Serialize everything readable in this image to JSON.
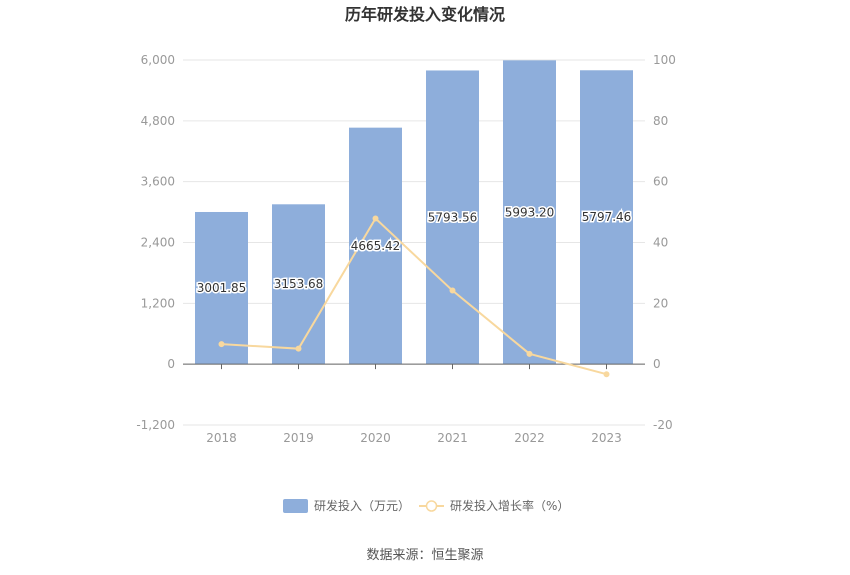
{
  "chart_data": {
    "type": "bar",
    "title": "历年研发投入变化情况",
    "categories": [
      "2018",
      "2019",
      "2020",
      "2021",
      "2022",
      "2023"
    ],
    "series": [
      {
        "name": "研发投入（万元）",
        "type": "bar",
        "axis": "left",
        "values": [
          3001.85,
          3153.68,
          4665.42,
          5793.56,
          5993.2,
          5797.46
        ],
        "labels": [
          "3001.85",
          "3153.68",
          "4665.42",
          "5793.56",
          "5993.20",
          "5797.46"
        ],
        "color": "#8eaedb"
      },
      {
        "name": "研发投入增长率（%）",
        "type": "line",
        "axis": "right",
        "values": [
          6.6,
          5.1,
          47.9,
          24.2,
          3.4,
          -3.3
        ],
        "color": "#f8d89e"
      }
    ],
    "y_left": {
      "min": -1200,
      "max": 6000,
      "ticks": [
        -1200,
        0,
        1200,
        2400,
        3600,
        4800,
        6000
      ],
      "tick_labels": [
        "-1,200",
        "0",
        "1,200",
        "2,400",
        "3,600",
        "4,800",
        "6,000"
      ]
    },
    "y_right": {
      "min": -20,
      "max": 100,
      "ticks": [
        -20,
        0,
        20,
        40,
        60,
        80,
        100
      ],
      "tick_labels": [
        "-20",
        "0",
        "20",
        "40",
        "60",
        "80",
        "100"
      ]
    },
    "grid": true,
    "legend_position": "bottom"
  },
  "source": "数据来源：恒生聚源"
}
